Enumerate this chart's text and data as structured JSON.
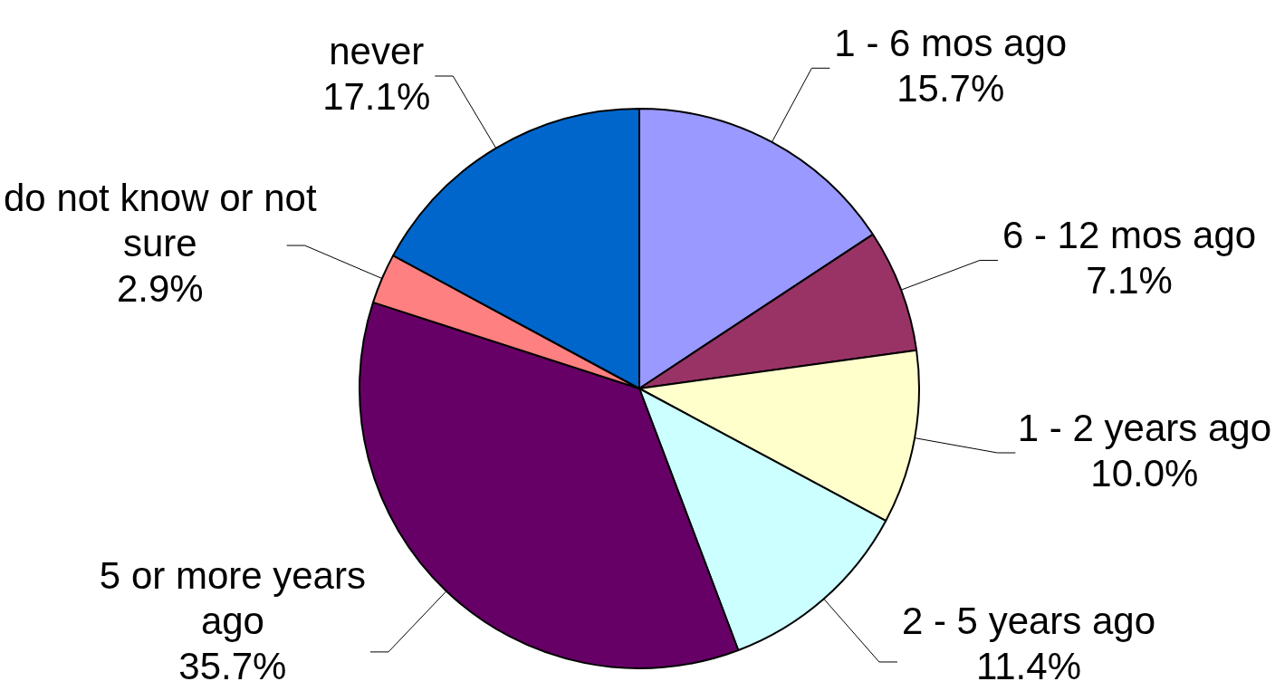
{
  "chart_data": {
    "type": "pie",
    "categories": [
      "1 - 6 mos ago",
      "6 - 12 mos ago",
      "1 - 2 years ago",
      "2 - 5 years ago",
      "5 or more years ago",
      "do not know or not sure",
      "never"
    ],
    "values": [
      15.7,
      7.1,
      10.0,
      11.4,
      35.7,
      2.9,
      17.1
    ],
    "colors": [
      "#9999ff",
      "#993366",
      "#ffffcc",
      "#ccffff",
      "#660066",
      "#ff8080",
      "#0066cc"
    ],
    "value_labels": [
      "15.7%",
      "7.1%",
      "10.0%",
      "11.4%",
      "35.7%",
      "2.9%",
      "17.1%"
    ],
    "legend": false
  }
}
